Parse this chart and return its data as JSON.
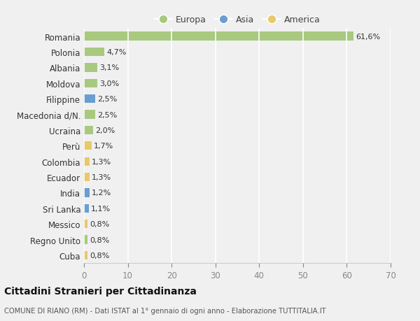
{
  "countries": [
    "Romania",
    "Polonia",
    "Albania",
    "Moldova",
    "Filippine",
    "Macedonia d/N.",
    "Ucraina",
    "Perù",
    "Colombia",
    "Ecuador",
    "India",
    "Sri Lanka",
    "Messico",
    "Regno Unito",
    "Cuba"
  ],
  "values": [
    61.6,
    4.7,
    3.1,
    3.0,
    2.5,
    2.5,
    2.0,
    1.7,
    1.3,
    1.3,
    1.2,
    1.1,
    0.8,
    0.8,
    0.8
  ],
  "labels": [
    "61,6%",
    "4,7%",
    "3,1%",
    "3,0%",
    "2,5%",
    "2,5%",
    "2,0%",
    "1,7%",
    "1,3%",
    "1,3%",
    "1,2%",
    "1,1%",
    "0,8%",
    "0,8%",
    "0,8%"
  ],
  "continent": [
    "Europa",
    "Europa",
    "Europa",
    "Europa",
    "Asia",
    "Europa",
    "Europa",
    "America",
    "America",
    "America",
    "Asia",
    "Asia",
    "America",
    "Europa",
    "America"
  ],
  "color_europa": "#a8c97f",
  "color_asia": "#6a9ecf",
  "color_america": "#e8c96a",
  "bg_color": "#f0f0f0",
  "grid_color": "#ffffff",
  "xlim": [
    0,
    70
  ],
  "xticks": [
    0,
    10,
    20,
    30,
    40,
    50,
    60,
    70
  ],
  "title": "Cittadini Stranieri per Cittadinanza",
  "subtitle": "COMUNE DI RIANO (RM) - Dati ISTAT al 1° gennaio di ogni anno - Elaborazione TUTTITALIA.IT",
  "legend_europa": "Europa",
  "legend_asia": "Asia",
  "legend_america": "America"
}
